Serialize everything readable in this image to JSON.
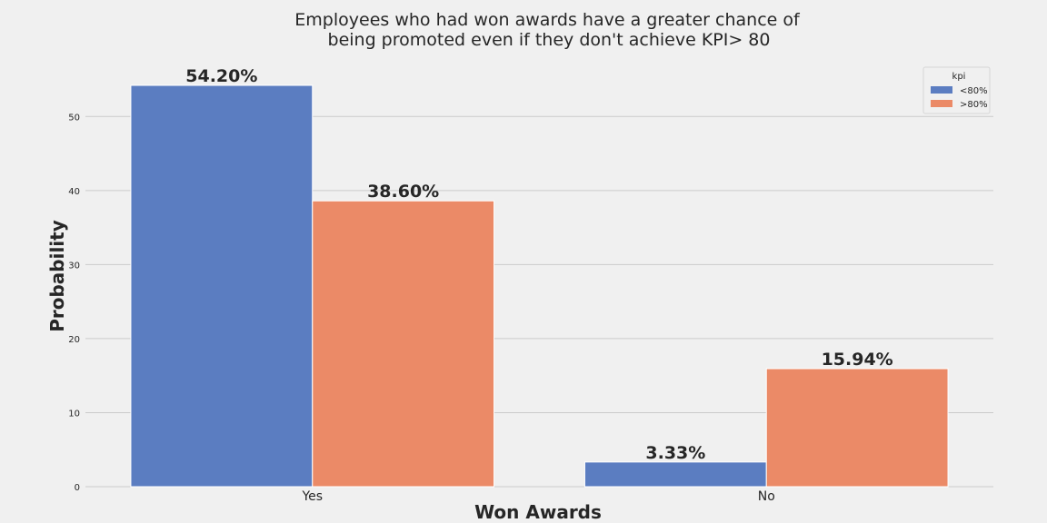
{
  "chart_data": {
    "type": "bar",
    "title_lines": [
      "Employees who had won awards have a greater chance of",
      "being promoted even if they don't achieve KPI> 80"
    ],
    "xlabel": "Won Awards",
    "ylabel": "Probability",
    "categories": [
      "Yes",
      "No"
    ],
    "series": [
      {
        "name": "<80%",
        "color": "#5b7dc1",
        "values": [
          54.2,
          3.33
        ],
        "labels": [
          "54.20%",
          "3.33%"
        ]
      },
      {
        "name": ">80%",
        "color": "#eb8a67",
        "values": [
          38.6,
          15.94
        ],
        "labels": [
          "38.60%",
          "15.94%"
        ]
      }
    ],
    "yticks": [
      0,
      10,
      20,
      30,
      40,
      50
    ],
    "ylim": [
      0,
      56.9
    ],
    "grid": true,
    "legend": {
      "title": "kpi",
      "position": "top-right"
    }
  }
}
